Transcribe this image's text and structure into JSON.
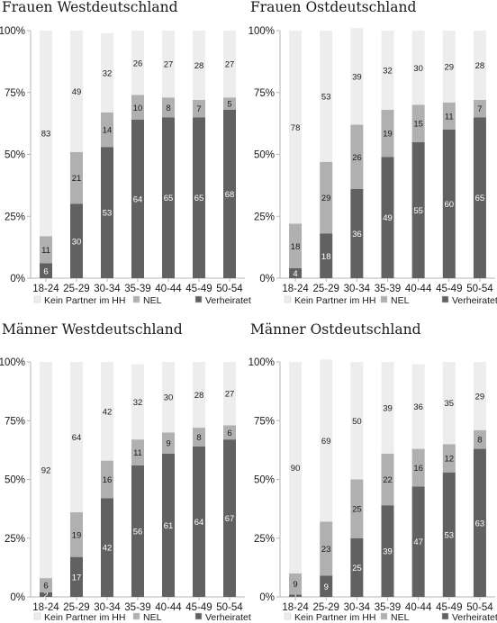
{
  "chart_data": [
    {
      "type": "bar",
      "stacked": true,
      "title": "Frauen Westdeutschland",
      "categories": [
        "18-24",
        "25-29",
        "30-34",
        "35-39",
        "40-44",
        "45-49",
        "50-54"
      ],
      "ylim": [
        0,
        100
      ],
      "yticks": [
        "0%",
        "25%",
        "50%",
        "75%",
        "100%"
      ],
      "series": [
        {
          "name": "Verheiratet",
          "values": [
            6,
            30,
            53,
            64,
            65,
            65,
            68
          ]
        },
        {
          "name": "NEL",
          "values": [
            11,
            21,
            14,
            10,
            8,
            7,
            5
          ]
        },
        {
          "name": "Kein Partner im HH",
          "values": [
            83,
            49,
            32,
            26,
            27,
            28,
            27
          ]
        }
      ],
      "legend": [
        "Kein Partner im HH",
        "NEL",
        "Verheiratet"
      ],
      "legend_position": "bottom",
      "grid": false
    },
    {
      "type": "bar",
      "stacked": true,
      "title": "Frauen Ostdeutschland",
      "categories": [
        "18-24",
        "25-29",
        "30-34",
        "35-39",
        "40-44",
        "45-49",
        "50-54"
      ],
      "ylim": [
        0,
        100
      ],
      "yticks": [
        "0%",
        "25%",
        "50%",
        "75%",
        "100%"
      ],
      "series": [
        {
          "name": "Verheiratet",
          "values": [
            4,
            18,
            36,
            49,
            55,
            60,
            65
          ]
        },
        {
          "name": "NEL",
          "values": [
            18,
            29,
            26,
            19,
            15,
            11,
            7
          ]
        },
        {
          "name": "Kein Partner im HH",
          "values": [
            78,
            53,
            39,
            32,
            30,
            29,
            28
          ]
        }
      ],
      "legend": [
        "Kein Partner im HH",
        "NEL",
        "Verheiratet"
      ],
      "legend_position": "bottom",
      "grid": false
    },
    {
      "type": "bar",
      "stacked": true,
      "title": "Männer Westdeutschland",
      "categories": [
        "18-24",
        "25-29",
        "30-34",
        "35-39",
        "40-44",
        "45-49",
        "50-54"
      ],
      "ylim": [
        0,
        100
      ],
      "yticks": [
        "0%",
        "25%",
        "50%",
        "75%",
        "100%"
      ],
      "series": [
        {
          "name": "Verheiratet",
          "values": [
            2,
            17,
            42,
            56,
            61,
            64,
            67
          ]
        },
        {
          "name": "NEL",
          "values": [
            6,
            19,
            16,
            11,
            9,
            8,
            6
          ]
        },
        {
          "name": "Kein Partner im HH",
          "values": [
            92,
            64,
            42,
            32,
            30,
            28,
            27
          ]
        }
      ],
      "legend": [
        "Kein Partner im HH",
        "NEL",
        "Verheiratet"
      ],
      "legend_position": "bottom",
      "grid": false
    },
    {
      "type": "bar",
      "stacked": true,
      "title": "Männer Ostdeutschland",
      "categories": [
        "18-24",
        "25-29",
        "30-34",
        "35-39",
        "40-44",
        "45-49",
        "50-54"
      ],
      "ylim": [
        0,
        100
      ],
      "yticks": [
        "0%",
        "25%",
        "50%",
        "75%",
        "100%"
      ],
      "series": [
        {
          "name": "Verheiratet",
          "values": [
            1,
            9,
            25,
            39,
            47,
            53,
            63
          ]
        },
        {
          "name": "NEL",
          "values": [
            9,
            23,
            25,
            22,
            16,
            12,
            8
          ]
        },
        {
          "name": "Kein Partner im HH",
          "values": [
            90,
            69,
            50,
            39,
            36,
            35,
            29
          ]
        }
      ],
      "legend": [
        "Kein Partner im HH",
        "NEL",
        "Verheiratet"
      ],
      "legend_position": "bottom",
      "grid": false
    }
  ],
  "colors": {
    "Kein Partner im HH": "#ededed",
    "NEL": "#b0b0b0",
    "Verheiratet": "#616161",
    "axis": "#b5b5b5"
  }
}
